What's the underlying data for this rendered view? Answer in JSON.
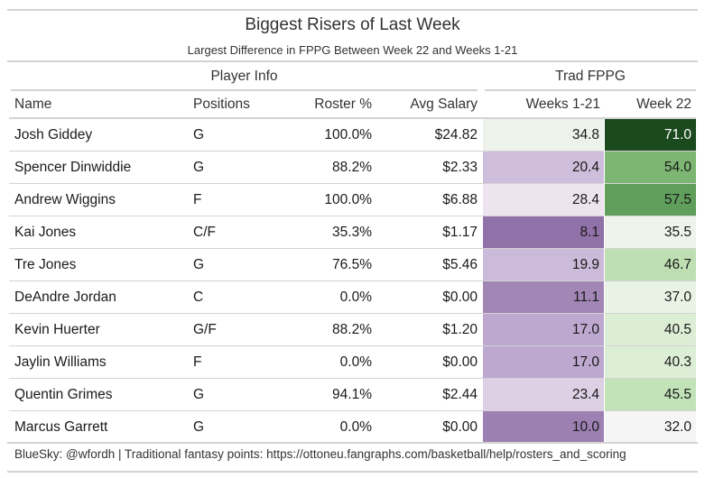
{
  "header": {
    "title": "Biggest Risers of Last Week",
    "subtitle": "Largest Difference in FPPG Between Week 22 and Weeks 1-21"
  },
  "spanners": {
    "player_info": "Player Info",
    "trad_fppg": "Trad FPPG"
  },
  "columns": {
    "name": "Name",
    "positions": "Positions",
    "roster": "Roster %",
    "salary": "Avg Salary",
    "weeks": "Weeks 1-21",
    "week22": "Week 22"
  },
  "source_note": "BlueSky: @wfordh | Traditional fantasy points: https://ottoneu.fangraphs.com/basketball/help/rosters_and_scoring",
  "colors": {
    "text_dark": "#1a1a1a",
    "text_light": "#ffffff",
    "rule": "#d3d3d3"
  },
  "chart_data": {
    "type": "table",
    "title": "Biggest Risers of Last Week",
    "subtitle": "Largest Difference in FPPG Between Week 22 and Weeks 1-21",
    "rows": [
      {
        "name": "Josh Giddey",
        "positions": "G",
        "roster": "100.0%",
        "salary": "$24.82",
        "weeks": "34.8",
        "week22": "71.0",
        "weeks_color": "#edf3ea",
        "week22_color": "#1c4a1f"
      },
      {
        "name": "Spencer Dinwiddie",
        "positions": "G",
        "roster": "88.2%",
        "salary": "$2.33",
        "weeks": "20.4",
        "week22": "54.0",
        "weeks_color": "#cebedb",
        "week22_color": "#7db573"
      },
      {
        "name": "Andrew Wiggins",
        "positions": "F",
        "roster": "100.0%",
        "salary": "$6.88",
        "weeks": "28.4",
        "week22": "57.5",
        "weeks_color": "#ede4ef",
        "week22_color": "#5f9e5b"
      },
      {
        "name": "Kai Jones",
        "positions": "C/F",
        "roster": "35.3%",
        "salary": "$1.17",
        "weeks": "8.1",
        "week22": "35.5",
        "weeks_color": "#9172a8",
        "week22_color": "#eef4eb"
      },
      {
        "name": "Tre Jones",
        "positions": "G",
        "roster": "76.5%",
        "salary": "$5.46",
        "weeks": "19.9",
        "week22": "46.7",
        "weeks_color": "#cbbad9",
        "week22_color": "#bddfb2"
      },
      {
        "name": "DeAndre Jordan",
        "positions": "C",
        "roster": "0.0%",
        "salary": "$0.00",
        "weeks": "11.1",
        "week22": "37.0",
        "weeks_color": "#a186b6",
        "week22_color": "#e9f3e5"
      },
      {
        "name": "Kevin Huerter",
        "positions": "G/F",
        "roster": "88.2%",
        "salary": "$1.20",
        "weeks": "17.0",
        "week22": "40.5",
        "weeks_color": "#bda8cf",
        "week22_color": "#dcedd5"
      },
      {
        "name": "Jaylin Williams",
        "positions": "F",
        "roster": "0.0%",
        "salary": "$0.00",
        "weeks": "17.0",
        "week22": "40.3",
        "weeks_color": "#bda8cf",
        "week22_color": "#ddeed7"
      },
      {
        "name": "Quentin Grimes",
        "positions": "G",
        "roster": "94.1%",
        "salary": "$2.44",
        "weeks": "23.4",
        "week22": "45.5",
        "weeks_color": "#ddd0e5",
        "week22_color": "#c2e2b8"
      },
      {
        "name": "Marcus Garrett",
        "positions": "G",
        "roster": "0.0%",
        "salary": "$0.00",
        "weeks": "10.0",
        "week22": "32.0",
        "weeks_color": "#9c80b2",
        "week22_color": "#f5f5f5"
      }
    ]
  }
}
